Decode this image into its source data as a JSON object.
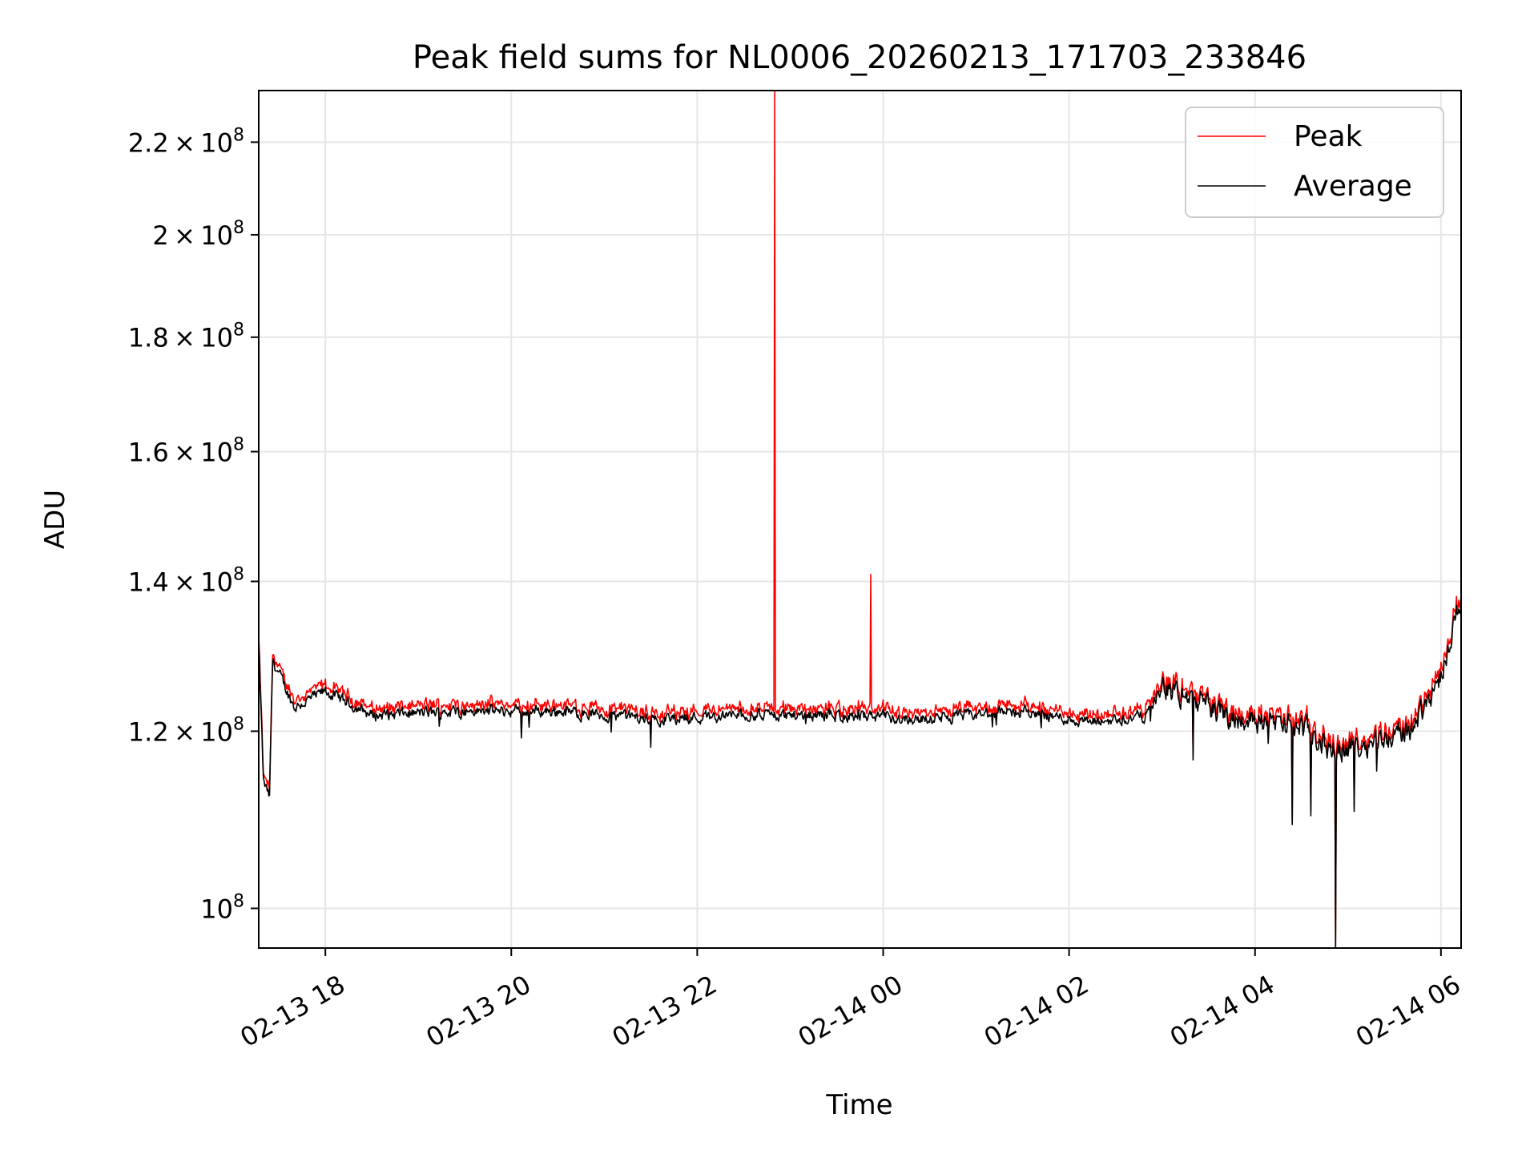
{
  "chart_data": {
    "type": "line",
    "title": "Peak field sums for NL0006_20260213_171703_233846",
    "xlabel": "Time",
    "ylabel": "ADU",
    "yscale": "log",
    "grid": true,
    "legend_position": "top-right",
    "x_range": [
      "2026-02-13 17:17",
      "2026-02-14 06:13"
    ],
    "ylim": [
      96000000,
      232000000
    ],
    "x_ticks": [
      "02-13 18",
      "02-13 20",
      "02-13 22",
      "02-14 00",
      "02-14 02",
      "02-14 04",
      "02-14 06"
    ],
    "y_ticks": [
      {
        "value": 100000000,
        "mantissa": "",
        "exponent": "8"
      },
      {
        "value": 120000000,
        "mantissa": "1.2",
        "exponent": "8"
      },
      {
        "value": 140000000,
        "mantissa": "1.4",
        "exponent": "8"
      },
      {
        "value": 160000000,
        "mantissa": "1.6",
        "exponent": "8"
      },
      {
        "value": 180000000,
        "mantissa": "1.8",
        "exponent": "8"
      },
      {
        "value": 200000000,
        "mantissa": "2",
        "exponent": "8"
      },
      {
        "value": 220000000,
        "mantissa": "2.2",
        "exponent": "8"
      }
    ],
    "series": [
      {
        "name": "Peak",
        "color": "#ff0000"
      },
      {
        "name": "Average",
        "color": "#000000"
      }
    ],
    "average_anchor_points": [
      {
        "t": "17:17",
        "v": 131000000
      },
      {
        "t": "17:20",
        "v": 114000000
      },
      {
        "t": "17:24",
        "v": 112000000
      },
      {
        "t": "17:26",
        "v": 129000000
      },
      {
        "t": "17:40",
        "v": 123000000
      },
      {
        "t": "18:00",
        "v": 125000000
      },
      {
        "t": "18:30",
        "v": 122000000
      },
      {
        "t": "19:30",
        "v": 122500000
      },
      {
        "t": "20:30",
        "v": 122500000
      },
      {
        "t": "21:30",
        "v": 121500000
      },
      {
        "t": "22:30",
        "v": 122000000
      },
      {
        "t": "23:30",
        "v": 122000000
      },
      {
        "t": "00:30",
        "v": 121500000
      },
      {
        "t": "01:30",
        "v": 122500000
      },
      {
        "t": "02:15",
        "v": 121000000
      },
      {
        "t": "02:50",
        "v": 122000000
      },
      {
        "t": "03:00",
        "v": 125500000
      },
      {
        "t": "03:20",
        "v": 124000000
      },
      {
        "t": "03:40",
        "v": 122000000
      },
      {
        "t": "04:30",
        "v": 120500000
      },
      {
        "t": "04:50",
        "v": 117500000
      },
      {
        "t": "05:10",
        "v": 118500000
      },
      {
        "t": "05:40",
        "v": 120000000
      },
      {
        "t": "06:00",
        "v": 127000000
      },
      {
        "t": "06:13",
        "v": 138000000
      }
    ],
    "spikes": [
      {
        "series": "Peak",
        "t": "22:50",
        "v": 232000000
      },
      {
        "series": "Peak",
        "t": "23:52",
        "v": 141000000
      },
      {
        "series": "Average",
        "t": "04:52",
        "v": 96000000
      }
    ],
    "dips": [
      {
        "t": "04:24",
        "v": 109000000
      },
      {
        "t": "04:36",
        "v": 110000000
      },
      {
        "t": "05:04",
        "v": 110500000
      },
      {
        "t": "03:20",
        "v": 116500000
      }
    ]
  }
}
